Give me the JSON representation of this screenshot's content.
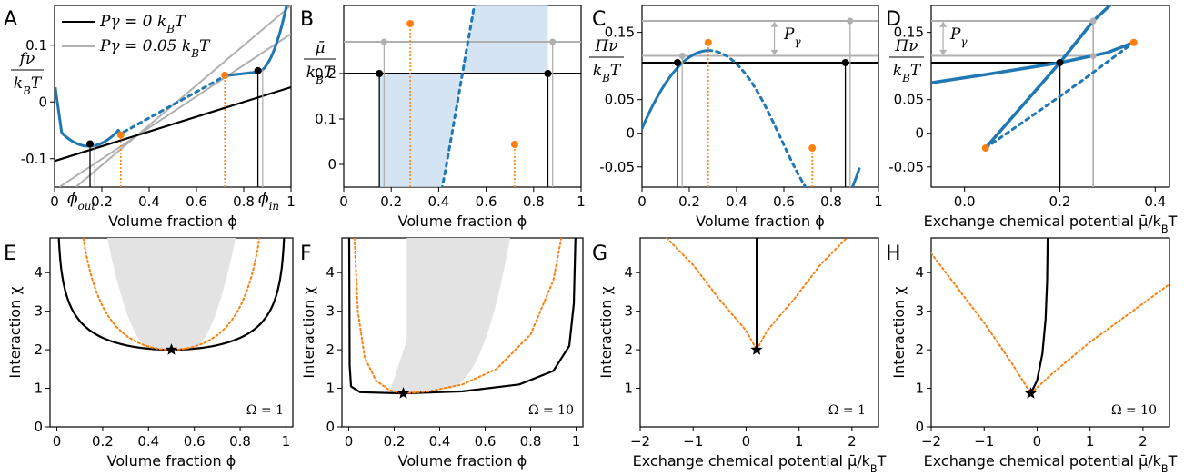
{
  "colors": {
    "blue": "#1f77b4",
    "orange": "#ff7f0e",
    "gray": "#b0b0b0",
    "lightgray": "#e3e3e3",
    "shade": "#c6dbef",
    "black": "#000000"
  },
  "chart_data": [
    {
      "panel": "A",
      "type": "line",
      "xlabel": "Volume fraction ϕ",
      "ylabel_num": "fν",
      "ylabel_den": "kBT",
      "xlim": [
        0,
        1
      ],
      "ylim": [
        -0.15,
        0.17
      ],
      "xticks": [
        0,
        0.2,
        0.4,
        0.6,
        0.8,
        1
      ],
      "xtick_labels": [
        "0",
        "0.2",
        "0.4",
        "0.6",
        "0.8",
        "1"
      ],
      "yticks": [
        -0.1,
        0,
        0.1
      ],
      "ytick_labels": [
        "-0.1",
        "0",
        "0.1"
      ],
      "legend": [
        "Pγ = 0 kBT",
        "Pγ = 0.05 kBT"
      ],
      "legend_position": "top-left",
      "annotations": [
        "ϕout",
        "ϕin"
      ],
      "series": [
        {
          "name": "Pγ = 0 kBT",
          "style": "black line",
          "x": [
            0,
            1
          ],
          "y": [
            -0.104,
            0.026
          ]
        },
        {
          "name": "Pγ = 0.05 kBT",
          "style": "gray lines",
          "x": [
            0.09,
            1
          ],
          "y": [
            -0.15,
            0.17
          ]
        },
        {
          "style": "blue solid",
          "x": [
            0.003,
            0.03,
            0.06,
            0.1,
            0.14,
            0.2,
            0.27
          ],
          "y": [
            0.04,
            -0.03,
            -0.061,
            -0.076,
            -0.078,
            -0.07,
            -0.058
          ]
        },
        {
          "style": "blue dotted",
          "x": [
            0.27,
            0.35,
            0.45,
            0.55,
            0.65,
            0.72
          ],
          "y": [
            -0.058,
            -0.035,
            -0.005,
            0.02,
            0.037,
            0.046
          ]
        },
        {
          "style": "blue solid",
          "x": [
            0.72,
            0.8,
            0.86,
            0.91,
            0.95,
            1.0
          ],
          "y": [
            0.046,
            0.052,
            0.054,
            0.07,
            0.1,
            0.17
          ]
        }
      ],
      "points_black": [
        [
          0.15,
          -0.074
        ],
        [
          0.86,
          0.055
        ]
      ],
      "points_orange": [
        [
          0.28,
          -0.058
        ],
        [
          0.72,
          0.047
        ]
      ]
    },
    {
      "panel": "B",
      "type": "line",
      "xlabel": "Volume fraction ϕ",
      "ylabel_num": "μ̄",
      "ylabel_den": "kBT",
      "xlim": [
        0,
        1
      ],
      "ylim": [
        -0.05,
        0.35
      ],
      "xticks": [
        0,
        0.2,
        0.4,
        0.6,
        0.8,
        1
      ],
      "xtick_labels": [
        "0",
        "0.2",
        "0.4",
        "0.6",
        "0.8",
        "1"
      ],
      "yticks": [
        0,
        0.1,
        0.2
      ],
      "ytick_labels": [
        "0",
        "0.1",
        "0.2"
      ],
      "hlines": [
        0.2,
        0.27
      ],
      "points_black": [
        [
          0.15,
          0.2
        ],
        [
          0.86,
          0.2
        ]
      ],
      "points_orange": [
        [
          0.28,
          0.31
        ],
        [
          0.72,
          0.044
        ]
      ]
    },
    {
      "panel": "C",
      "type": "line",
      "xlabel": "Volume fraction ϕ",
      "ylabel_num": "Πν",
      "ylabel_den": "kBT",
      "xlim": [
        0,
        1
      ],
      "ylim": [
        -0.08,
        0.19
      ],
      "xticks": [
        0,
        0.2,
        0.4,
        0.6,
        0.8,
        1
      ],
      "xtick_labels": [
        "0",
        "0.2",
        "0.4",
        "0.6",
        "0.8",
        "1"
      ],
      "yticks": [
        -0.05,
        0,
        0.05,
        0.15
      ],
      "ytick_labels": [
        "-0.05",
        "0",
        "0.05",
        "0.15"
      ],
      "hlines": [
        0.105,
        0.115,
        0.167
      ],
      "annotation": "Pγ",
      "points_black": [
        [
          0.15,
          0.105
        ],
        [
          0.86,
          0.105
        ]
      ],
      "points_orange": [
        [
          0.28,
          0.135
        ],
        [
          0.72,
          -0.022
        ]
      ]
    },
    {
      "panel": "D",
      "type": "line",
      "xlabel": "Exchange chemical potential μ̄/kBT",
      "ylabel_num": "Πν",
      "ylabel_den": "kBT",
      "xlim": [
        -0.07,
        0.43
      ],
      "ylim": [
        -0.08,
        0.19
      ],
      "xticks": [
        0,
        0.2,
        0.4
      ],
      "xtick_labels": [
        "0.0",
        "0.2",
        "0.4"
      ],
      "yticks": [
        -0.05,
        0,
        0.05,
        0.15
      ],
      "ytick_labels": [
        "-0.05",
        "0",
        "0.05",
        "0.15"
      ],
      "annotation": "Pγ",
      "points_black": [
        [
          0.2,
          0.105
        ]
      ],
      "points_orange": [
        [
          0.044,
          -0.022
        ],
        [
          0.355,
          0.135
        ]
      ]
    },
    {
      "panel": "E",
      "type": "line",
      "xlabel": "Volume fraction ϕ",
      "ylabel": "Interaction χ",
      "xlim": [
        -0.03,
        1.03
      ],
      "ylim": [
        0,
        4.9
      ],
      "xticks": [
        0,
        0.2,
        0.4,
        0.6,
        0.8,
        1
      ],
      "xtick_labels": [
        "0",
        "0.2",
        "0.4",
        "0.6",
        "0.8",
        "1"
      ],
      "yticks": [
        0,
        1,
        2,
        3,
        4
      ],
      "ytick_labels": [
        "0",
        "1",
        "2",
        "3",
        "4"
      ],
      "label": "Ω = 1",
      "critical_point": [
        0.5,
        2
      ]
    },
    {
      "panel": "F",
      "type": "line",
      "xlabel": "Volume fraction ϕ",
      "ylabel": "Interaction χ",
      "xlim": [
        -0.03,
        1.03
      ],
      "ylim": [
        0,
        4.9
      ],
      "xticks": [
        0,
        0.2,
        0.4,
        0.6,
        0.8,
        1
      ],
      "xtick_labels": [
        "0",
        "0.2",
        "0.4",
        "0.6",
        "0.8",
        "1"
      ],
      "yticks": [
        0,
        1,
        2,
        3,
        4
      ],
      "ytick_labels": [
        "0",
        "1",
        "2",
        "3",
        "4"
      ],
      "label": "Ω = 10",
      "critical_point": [
        0.24,
        0.87
      ]
    },
    {
      "panel": "G",
      "type": "line",
      "xlabel": "Exchange chemical potential μ̄/kBT",
      "ylabel": "Interaction χ",
      "xlim": [
        -2,
        2.5
      ],
      "ylim": [
        0,
        4.9
      ],
      "xticks": [
        -2,
        -1,
        0,
        1,
        2
      ],
      "xtick_labels": [
        "−2",
        "−1",
        "0",
        "1",
        "2"
      ],
      "yticks": [
        1,
        2,
        3,
        4
      ],
      "ytick_labels": [
        "1",
        "2",
        "3",
        "4"
      ],
      "label": "Ω = 1",
      "critical_point": [
        0.2,
        2
      ]
    },
    {
      "panel": "H",
      "type": "line",
      "xlabel": "Exchange chemical potential μ̄/kBT",
      "ylabel": "Interaction χ",
      "xlim": [
        -2,
        2.5
      ],
      "ylim": [
        0,
        4.9
      ],
      "xticks": [
        -2,
        -1,
        0,
        1,
        2
      ],
      "xtick_labels": [
        "−2",
        "−1",
        "0",
        "1",
        "2"
      ],
      "yticks": [
        0,
        1,
        2,
        3,
        4
      ],
      "ytick_labels": [
        "0",
        "1",
        "2",
        "3",
        "4"
      ],
      "label": "Ω = 10",
      "critical_point": [
        -0.12,
        0.87
      ]
    }
  ]
}
